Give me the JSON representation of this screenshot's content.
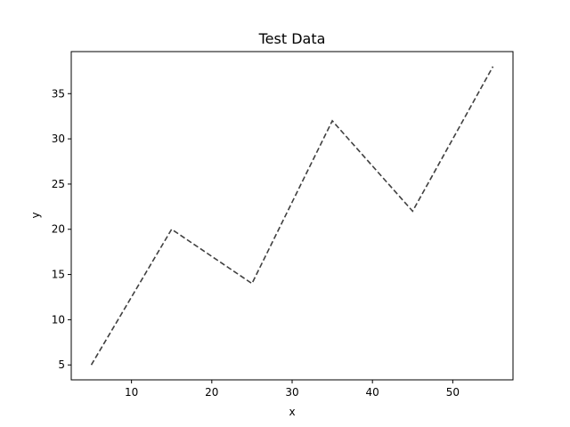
{
  "chart_data": {
    "type": "line",
    "title": "Test Data",
    "xlabel": "x",
    "ylabel": "y",
    "xlim": [
      2.5,
      57.5
    ],
    "ylim": [
      3.35,
      39.65
    ],
    "xticks": [
      10,
      20,
      30,
      40,
      50
    ],
    "yticks": [
      5,
      10,
      15,
      20,
      25,
      30,
      35
    ],
    "grid": false,
    "legend": null,
    "series": [
      {
        "x": [
          5,
          15,
          25,
          35,
          45,
          55
        ],
        "y": [
          5,
          20,
          14,
          32,
          22,
          38
        ],
        "color": "#404040",
        "linestyle": "dashed"
      }
    ]
  }
}
